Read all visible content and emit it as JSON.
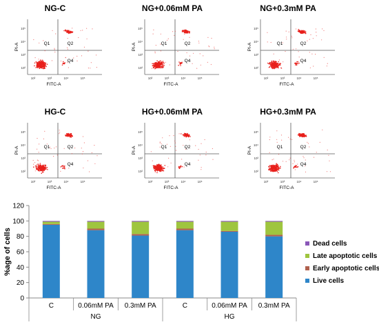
{
  "colors": {
    "dot": "#e8201c",
    "live": "#2e86c9",
    "early": "#b0614e",
    "late": "#9fc53f",
    "dead": "#8a57b8",
    "axis": "#666666",
    "gate": "#555555"
  },
  "flow_panels": [
    {
      "title": "NG-C",
      "clusters": [
        {
          "q": "Q3",
          "n": 260
        },
        {
          "q": "Q2",
          "n": 55
        },
        {
          "q": "Q4",
          "n": 12
        }
      ]
    },
    {
      "title": "NG+0.06mM PA",
      "clusters": [
        {
          "q": "Q3",
          "n": 230
        },
        {
          "q": "Q2",
          "n": 75
        },
        {
          "q": "Q4",
          "n": 14
        }
      ]
    },
    {
      "title": "NG+0.3mM PA",
      "clusters": [
        {
          "q": "Q3",
          "n": 210
        },
        {
          "q": "Q2",
          "n": 95
        },
        {
          "q": "Q4",
          "n": 14
        }
      ]
    },
    {
      "title": "HG-C",
      "clusters": [
        {
          "q": "Q3",
          "n": 250
        },
        {
          "q": "Q2",
          "n": 85
        },
        {
          "q": "Q4",
          "n": 12
        }
      ]
    },
    {
      "title": "HG+0.06mM PA",
      "clusters": [
        {
          "q": "Q3",
          "n": 250
        },
        {
          "q": "Q2",
          "n": 75
        },
        {
          "q": "Q4",
          "n": 14
        }
      ]
    },
    {
      "title": "HG+0.3mM PA",
      "clusters": [
        {
          "q": "Q3",
          "n": 240
        },
        {
          "q": "Q2",
          "n": 105
        },
        {
          "q": "Q4",
          "n": 14
        }
      ]
    }
  ],
  "flow_axes": {
    "xlabel": "FITC-A",
    "ylabel": "PI-A",
    "quadrants": {
      "q1": "Q1",
      "q2": "Q2",
      "q4": "Q4"
    },
    "ticks": [
      "10²",
      "10³",
      "10⁴",
      "10⁵"
    ]
  },
  "chart_data": {
    "type": "bar",
    "stacked": true,
    "categories": [
      "C",
      "0.06mM PA",
      "0.3mM PA",
      "C",
      "0.06mM PA",
      "0.3mM PA"
    ],
    "groups": [
      {
        "label": "NG",
        "span": 3
      },
      {
        "label": "HG",
        "span": 3
      }
    ],
    "series": [
      {
        "name": "Live cells",
        "color": "live",
        "values": [
          95,
          88,
          81,
          88,
          86,
          80
        ]
      },
      {
        "name": "Early apoptotic cells",
        "color": "early",
        "values": [
          1,
          2,
          2,
          2,
          1,
          2
        ]
      },
      {
        "name": "Late apoptotic cells",
        "color": "late",
        "values": [
          3,
          9,
          16,
          9,
          12,
          17
        ]
      },
      {
        "name": "Dead cells",
        "color": "dead",
        "values": [
          1,
          1,
          1,
          1,
          1,
          1
        ]
      }
    ],
    "ylabel": "%age of cells",
    "ylim": [
      0,
      120
    ],
    "yticks": [
      0,
      20,
      40,
      60,
      80,
      100,
      120
    ],
    "legend_order": [
      "Dead cells",
      "Late apoptotic cells",
      "Early apoptotic cells",
      "Live cells"
    ],
    "legend_position": "right",
    "grid": false
  }
}
